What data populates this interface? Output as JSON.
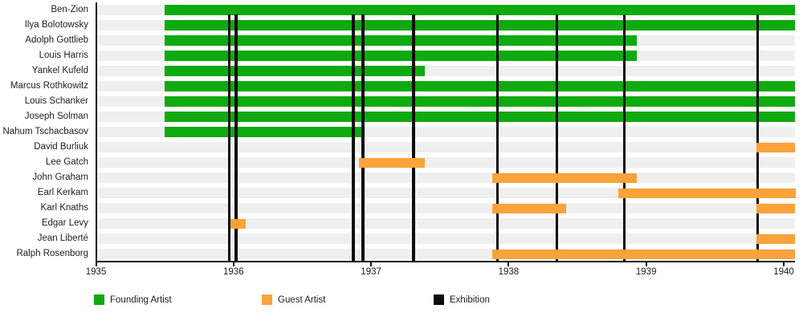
{
  "chart_data": {
    "type": "bar",
    "subtype": "gantt-timeline",
    "title": "",
    "xlabel": "",
    "ylabel": "",
    "x_ticks": [
      1935,
      1936,
      1937,
      1938,
      1939,
      1940
    ],
    "xlim": [
      1935,
      1940.08
    ],
    "grid": false,
    "legend_position": "bottom",
    "rows": [
      {
        "label": "Ben-Zion",
        "role": "founding",
        "bars": [
          [
            1935.5,
            1940.08
          ]
        ]
      },
      {
        "label": "Ilya Bolotowsky",
        "role": "founding",
        "bars": [
          [
            1935.5,
            1940.08
          ]
        ]
      },
      {
        "label": "Adolph Gottlieb",
        "role": "founding",
        "bars": [
          [
            1935.5,
            1938.93
          ]
        ]
      },
      {
        "label": "Louis Harris",
        "role": "founding",
        "bars": [
          [
            1935.5,
            1938.93
          ]
        ]
      },
      {
        "label": "Yankel Kufeld",
        "role": "founding",
        "bars": [
          [
            1935.5,
            1937.39
          ]
        ]
      },
      {
        "label": "Marcus Rothkowitz",
        "role": "founding",
        "bars": [
          [
            1935.5,
            1940.08
          ]
        ]
      },
      {
        "label": "Louis Schanker",
        "role": "founding",
        "bars": [
          [
            1935.5,
            1940.08
          ]
        ]
      },
      {
        "label": "Joseph Solman",
        "role": "founding",
        "bars": [
          [
            1935.5,
            1940.08
          ]
        ]
      },
      {
        "label": "Nahum Tschacbasov",
        "role": "founding",
        "bars": [
          [
            1935.5,
            1936.93
          ]
        ]
      },
      {
        "label": "David Burliuk",
        "role": "guest",
        "bars": [
          [
            1939.8,
            1940.08
          ]
        ]
      },
      {
        "label": "Lee Gatch",
        "role": "guest",
        "bars": [
          [
            1936.91,
            1937.39
          ]
        ]
      },
      {
        "label": "John Graham",
        "role": "guest",
        "bars": [
          [
            1937.88,
            1938.93
          ]
        ]
      },
      {
        "label": "Earl Kerkam",
        "role": "guest",
        "bars": [
          [
            1938.8,
            1940.09
          ]
        ]
      },
      {
        "label": "Karl Knaths",
        "role": "guest",
        "bars": [
          [
            1937.88,
            1938.42
          ],
          [
            1939.8,
            1940.08
          ]
        ]
      },
      {
        "label": "Edgar Levy",
        "role": "guest",
        "bars": [
          [
            1935.98,
            1936.09
          ]
        ]
      },
      {
        "label": "Jean Liberté",
        "role": "guest",
        "bars": [
          [
            1939.8,
            1940.08
          ]
        ]
      },
      {
        "label": "Ralph Rosenborg",
        "role": "guest",
        "bars": [
          [
            1937.88,
            1940.08
          ]
        ]
      }
    ],
    "exhibitions": [
      1935.97,
      1936.02,
      1936.87,
      1936.94,
      1937.31,
      1937.92,
      1938.35,
      1938.84,
      1939.81
    ],
    "legend": [
      {
        "label": "Founding Artist",
        "color": "#0faa0f"
      },
      {
        "label": "Guest Artist",
        "color": "#f9a33a"
      },
      {
        "label": "Exhibition",
        "color": "#0d0d0d"
      }
    ],
    "colors": {
      "founding": "#0faa0f",
      "guest": "#f9a33a",
      "exhibition": "#0d0d0d",
      "row_track": "#efefef",
      "axis": "#111111",
      "text": "#1d1d1d"
    }
  }
}
